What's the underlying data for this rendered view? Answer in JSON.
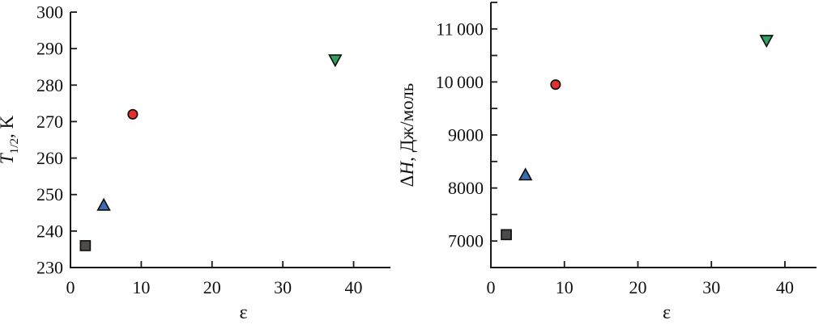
{
  "figure": {
    "background": "#ffffff",
    "description": "Two scatter plots of melting temperature and enthalpy versus solvent permittivity"
  },
  "markers": {
    "square": {
      "fill": "#4d4a48",
      "stroke": "#111111"
    },
    "triangle-up": {
      "fill": "#3b6cb4",
      "stroke": "#111111"
    },
    "circle": {
      "fill": "#e3302f",
      "stroke": "#111111"
    },
    "triangle-down": {
      "fill": "#2f9f62",
      "stroke": "#111111"
    }
  },
  "chart_data": [
    {
      "type": "scatter",
      "title": "",
      "xlabel": "ε",
      "ylabel": "T1/2, K",
      "ylabel_parts": {
        "pre": "",
        "italic": "T",
        "sub": "1/2",
        "post": ", K"
      },
      "xlim": [
        0,
        45.2
      ],
      "ylim": [
        230,
        300
      ],
      "grid": false,
      "legend": "none",
      "x_ticks": [
        {
          "v": 0,
          "label": "0"
        },
        {
          "v": 10,
          "label": "10"
        },
        {
          "v": 20,
          "label": "20"
        },
        {
          "v": 30,
          "label": "30"
        },
        {
          "v": 40,
          "label": "40"
        }
      ],
      "y_ticks": [
        {
          "v": 230,
          "label": "230"
        },
        {
          "v": 240,
          "label": "240"
        },
        {
          "v": 250,
          "label": "250"
        },
        {
          "v": 260,
          "label": "260"
        },
        {
          "v": 270,
          "label": "270"
        },
        {
          "v": 280,
          "label": "280"
        },
        {
          "v": 290,
          "label": "290"
        },
        {
          "v": 300,
          "label": "300"
        }
      ],
      "points": [
        {
          "x": 2.1,
          "y": 236,
          "marker": "square"
        },
        {
          "x": 4.7,
          "y": 247,
          "marker": "triangle-up"
        },
        {
          "x": 8.8,
          "y": 272,
          "marker": "circle"
        },
        {
          "x": 37.4,
          "y": 287,
          "marker": "triangle-down"
        }
      ]
    },
    {
      "type": "scatter",
      "title": "",
      "xlabel": "ε",
      "ylabel": "ΔH, Дж/моль",
      "ylabel_parts": {
        "pre": "Δ",
        "italic": "H",
        "sub": "",
        "post": ", Дж/моль"
      },
      "xlim": [
        0,
        44.3
      ],
      "ylim": [
        6500,
        11500
      ],
      "grid": false,
      "legend": "none",
      "x_ticks": [
        {
          "v": 0,
          "label": "0"
        },
        {
          "v": 10,
          "label": "10"
        },
        {
          "v": 20,
          "label": "20"
        },
        {
          "v": 30,
          "label": "30"
        },
        {
          "v": 40,
          "label": "40"
        }
      ],
      "y_ticks": [
        {
          "v": 6500,
          "label": ""
        },
        {
          "v": 7000,
          "label": "7000"
        },
        {
          "v": 7500,
          "label": ""
        },
        {
          "v": 8000,
          "label": "8000"
        },
        {
          "v": 8500,
          "label": ""
        },
        {
          "v": 9000,
          "label": "9000"
        },
        {
          "v": 9500,
          "label": ""
        },
        {
          "v": 10000,
          "label": "10 000"
        },
        {
          "v": 10500,
          "label": ""
        },
        {
          "v": 11000,
          "label": "11 000"
        },
        {
          "v": 11500,
          "label": ""
        }
      ],
      "points": [
        {
          "x": 2.1,
          "y": 7120,
          "marker": "square"
        },
        {
          "x": 4.7,
          "y": 8240,
          "marker": "triangle-up"
        },
        {
          "x": 8.8,
          "y": 9950,
          "marker": "circle"
        },
        {
          "x": 37.5,
          "y": 10790,
          "marker": "triangle-down"
        }
      ]
    }
  ]
}
